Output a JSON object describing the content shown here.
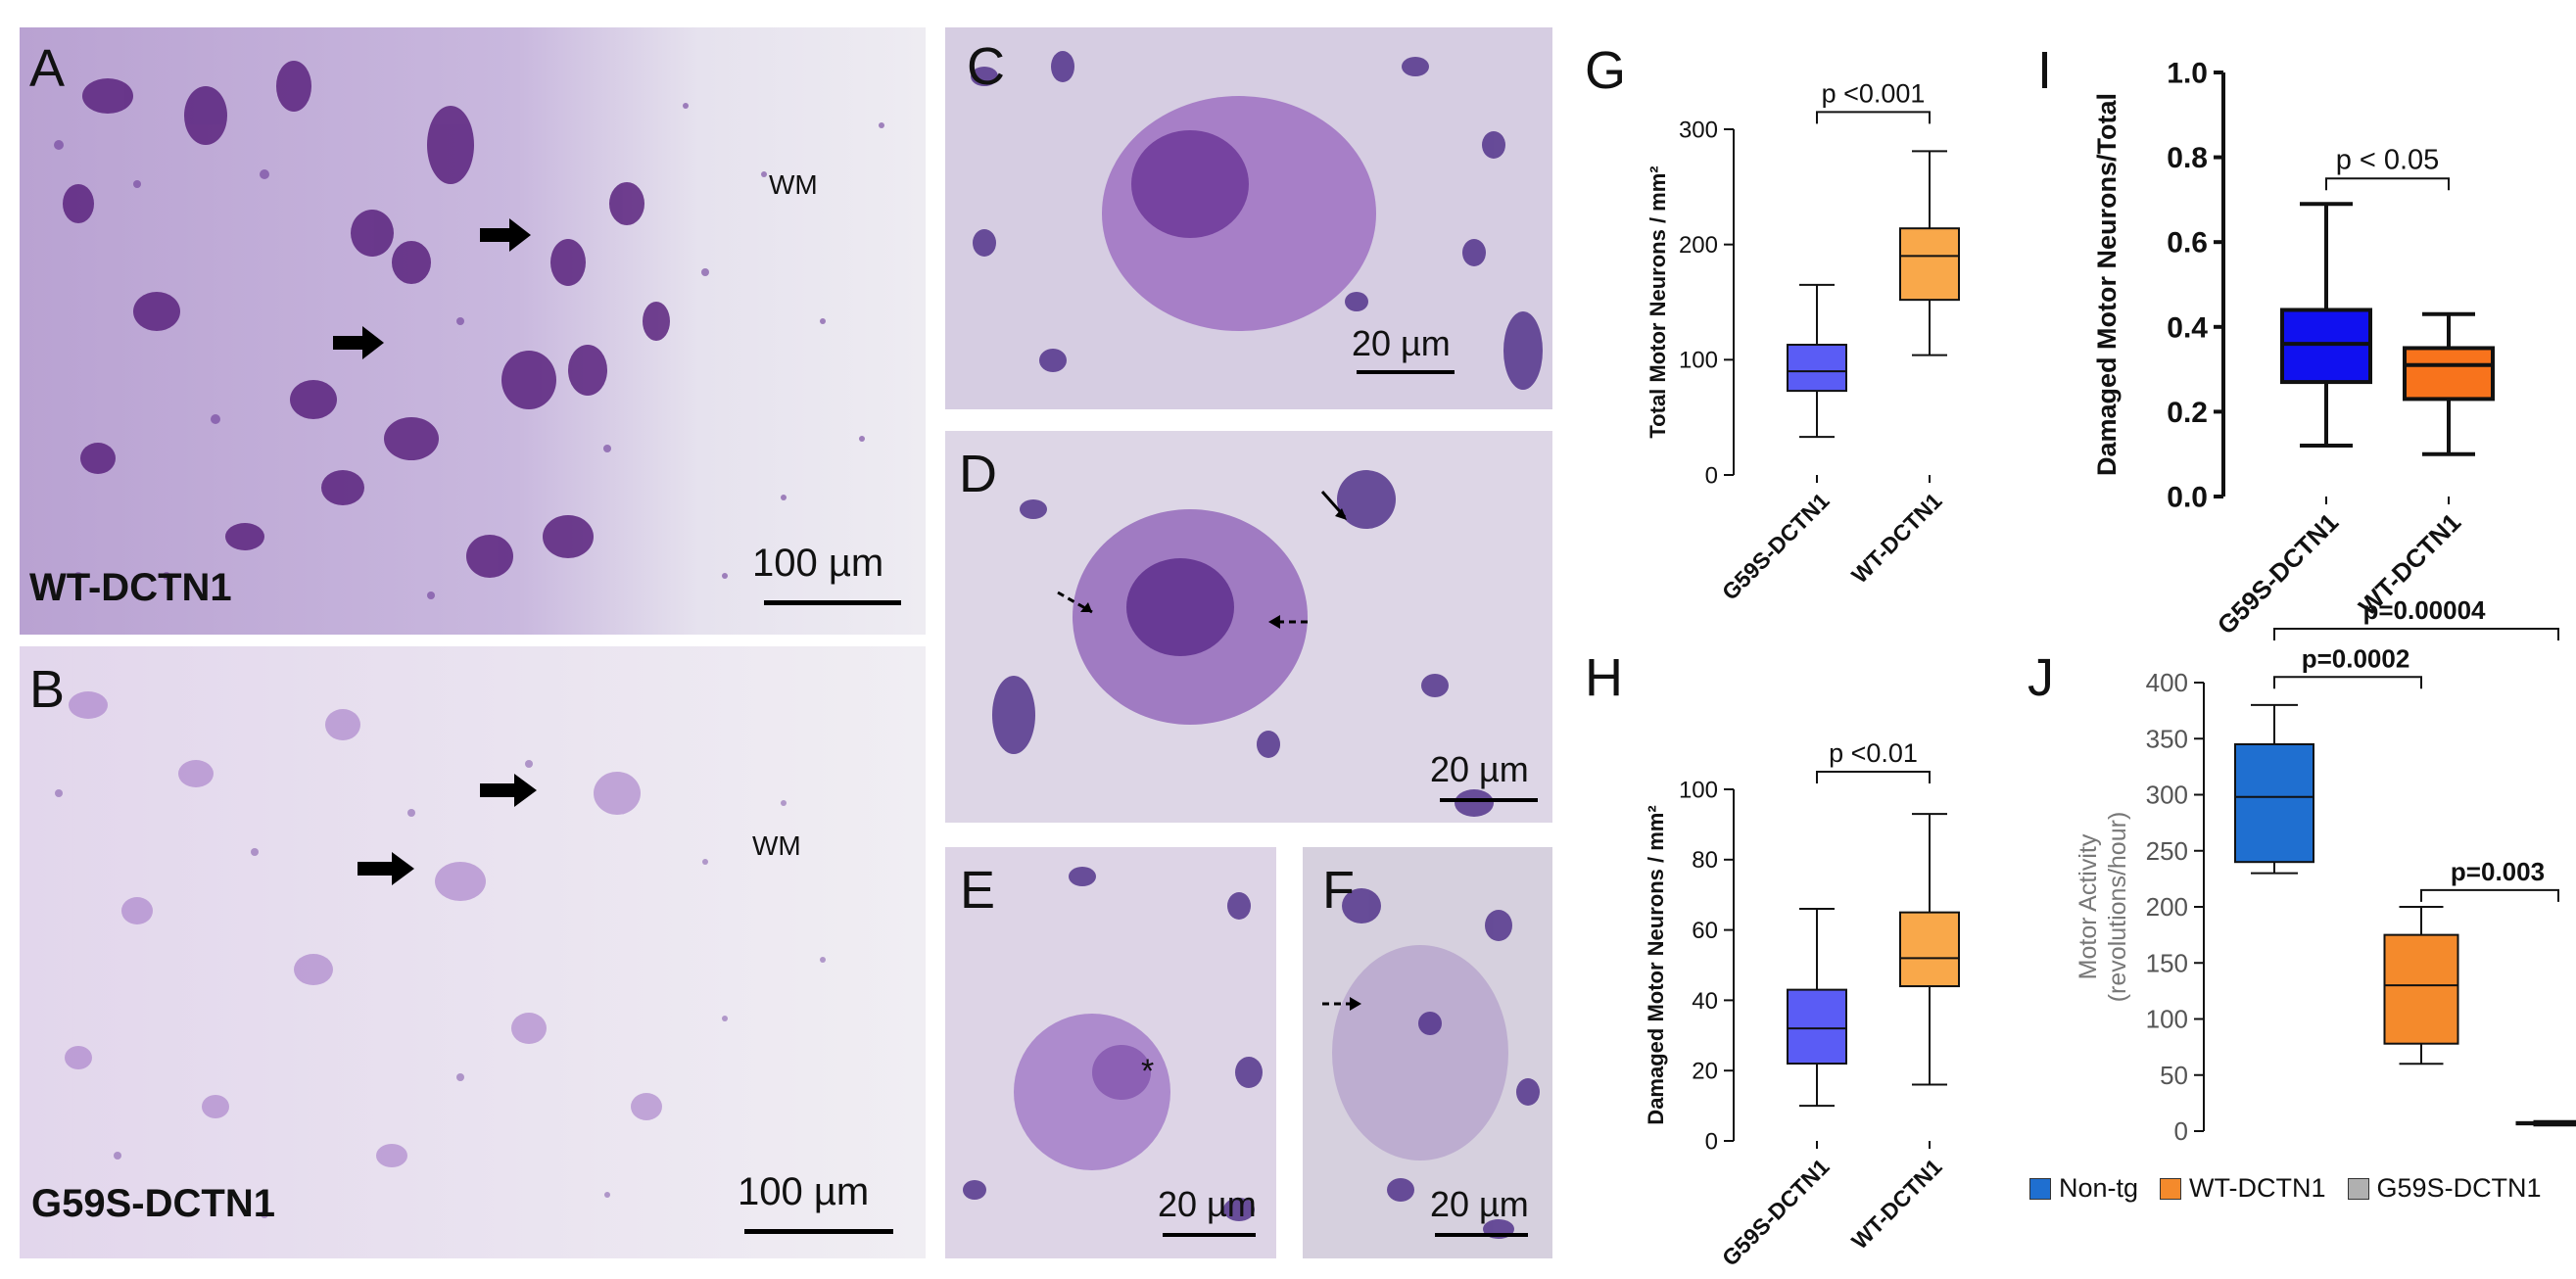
{
  "micro": {
    "A": {
      "letter": "A",
      "label": "WT-DCTN1",
      "wm": "WM",
      "scale": "100 µm"
    },
    "B": {
      "letter": "B",
      "label": "G59S-DCTN1",
      "wm": "WM",
      "scale": "100 µm"
    },
    "C": {
      "letter": "C",
      "scale": "20 µm"
    },
    "D": {
      "letter": "D",
      "scale": "20 µm"
    },
    "E": {
      "letter": "E",
      "scale": "20 µm",
      "mark": "*"
    },
    "F": {
      "letter": "F",
      "scale": "20 µm"
    }
  },
  "colors": {
    "g59s_blue": "#5a5cf5",
    "wt_orange": "#f9a84a",
    "i_blue": "#1010f0",
    "i_orange": "#f8731c",
    "j_blue": "#1f6fd0",
    "j_orange": "#f48a2c",
    "j_gray": "#b0b0b0",
    "stain": "#7a3fa6"
  },
  "chart_data": [
    {
      "panel": "G",
      "type": "box",
      "ylabel": "Total Motor Neurons / mm²",
      "ylim": [
        0,
        300
      ],
      "yticks": [
        0,
        100,
        200,
        300
      ],
      "categories": [
        "G59S-DCTN1",
        "WT-DCTN1"
      ],
      "boxes": [
        {
          "min": 33,
          "q1": 73,
          "median": 90,
          "q3": 113,
          "max": 165
        },
        {
          "min": 104,
          "q1": 152,
          "median": 190,
          "q3": 214,
          "max": 281
        }
      ],
      "comparisons": [
        {
          "text": "p <0.001",
          "from": 0,
          "to": 1,
          "level": 315
        }
      ]
    },
    {
      "panel": "I",
      "type": "box",
      "ylabel": "Damaged Motor Neurons/Total",
      "ylim": [
        0,
        1.0
      ],
      "yticks": [
        "0.0",
        "0.2",
        "0.4",
        "0.6",
        "0.8",
        "1.0"
      ],
      "categories": [
        "G59S-DCTN1",
        "WT-DCTN1"
      ],
      "boxes": [
        {
          "min": 0.12,
          "q1": 0.27,
          "median": 0.36,
          "q3": 0.44,
          "max": 0.69
        },
        {
          "min": 0.1,
          "q1": 0.23,
          "median": 0.31,
          "q3": 0.35,
          "max": 0.43
        }
      ],
      "comparisons": [
        {
          "text": "p < 0.05",
          "from": 0,
          "to": 1,
          "level": 0.75
        }
      ]
    },
    {
      "panel": "H",
      "type": "box",
      "ylabel": "Damaged Motor Neurons / mm²",
      "ylim": [
        0,
        100
      ],
      "yticks": [
        0,
        20,
        40,
        60,
        80,
        100
      ],
      "categories": [
        "G59S-DCTN1",
        "WT-DCTN1"
      ],
      "boxes": [
        {
          "min": 10,
          "q1": 22,
          "median": 32,
          "q3": 43,
          "max": 66
        },
        {
          "min": 16,
          "q1": 44,
          "median": 52,
          "q3": 65,
          "max": 93
        }
      ],
      "comparisons": [
        {
          "text": "p <0.01",
          "from": 0,
          "to": 1,
          "level": 105
        }
      ]
    },
    {
      "panel": "J",
      "type": "box",
      "ylabel": "Motor Activity (revolutions/hour)",
      "ylim": [
        0,
        400
      ],
      "yticks": [
        0,
        50,
        100,
        150,
        200,
        250,
        300,
        350,
        400
      ],
      "categories": [
        "Non-tg",
        "WT-DCTN1",
        "G59S-DCTN1"
      ],
      "legend": [
        "Non-tg",
        "WT-DCTN1",
        "G59S-DCTN1"
      ],
      "boxes": [
        {
          "min": 230,
          "q1": 240,
          "median": 298,
          "q3": 345,
          "max": 380
        },
        {
          "min": 60,
          "q1": 78,
          "median": 130,
          "q3": 175,
          "max": 200
        },
        {
          "min": 5,
          "q1": 6,
          "median": 7,
          "q3": 8,
          "max": 9
        }
      ],
      "comparisons": [
        {
          "text": "p=0.0002",
          "from": 0,
          "to": 1,
          "level": 405
        },
        {
          "text": "p=0.003",
          "from": 1,
          "to": 2,
          "level": 215
        },
        {
          "text": "p=0.00004",
          "from": 0,
          "to": 2,
          "level": 448
        }
      ]
    }
  ]
}
